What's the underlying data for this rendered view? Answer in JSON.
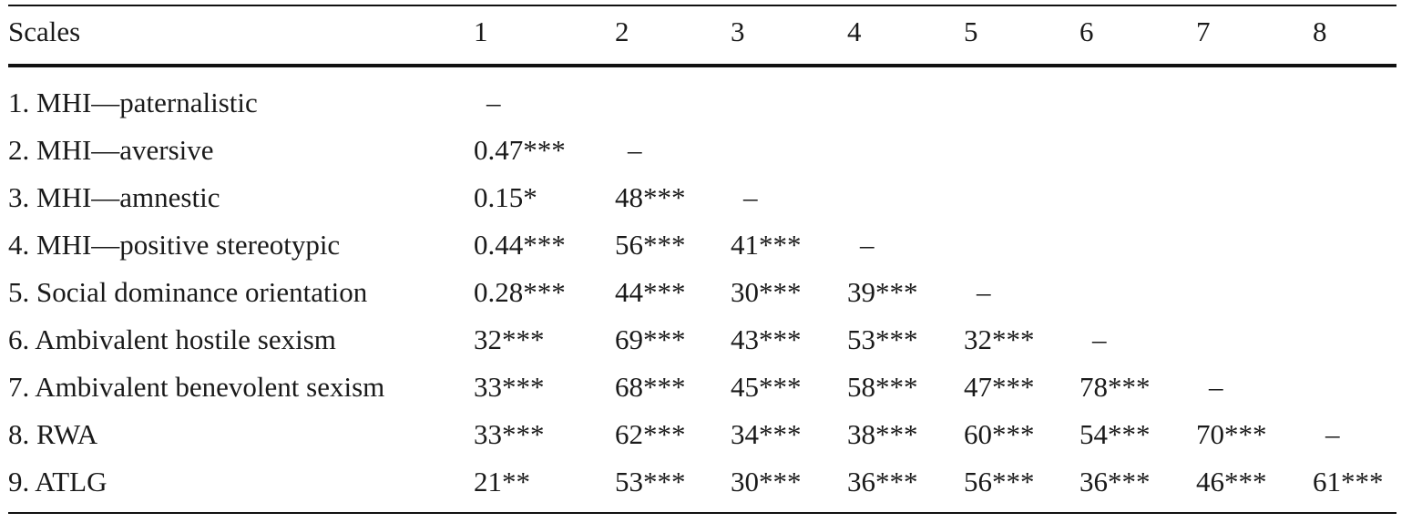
{
  "table": {
    "header": [
      "Scales",
      "1",
      "2",
      "3",
      "4",
      "5",
      "6",
      "7",
      "8"
    ],
    "rows": [
      {
        "label": "1. MHI—paternalistic",
        "values": [
          "–",
          "",
          "",
          "",
          "",
          "",
          "",
          ""
        ]
      },
      {
        "label": "2. MHI—aversive",
        "values": [
          "0.47***",
          "–",
          "",
          "",
          "",
          "",
          "",
          ""
        ]
      },
      {
        "label": "3. MHI—amnestic",
        "values": [
          "0.15*",
          "48***",
          "–",
          "",
          "",
          "",
          "",
          ""
        ]
      },
      {
        "label": "4. MHI—positive stereotypic",
        "values": [
          "0.44***",
          "56***",
          "41***",
          "–",
          "",
          "",
          "",
          ""
        ]
      },
      {
        "label": "5. Social dominance orientation",
        "values": [
          "0.28***",
          "44***",
          "30***",
          "39***",
          "–",
          "",
          "",
          ""
        ]
      },
      {
        "label": "6. Ambivalent hostile sexism",
        "values": [
          "32***",
          "69***",
          "43***",
          "53***",
          "32***",
          "–",
          "",
          ""
        ]
      },
      {
        "label": "7. Ambivalent benevolent sexism",
        "values": [
          "33***",
          "68***",
          "45***",
          "58***",
          "47***",
          "78***",
          "–",
          ""
        ]
      },
      {
        "label": "8. RWA",
        "values": [
          "33***",
          "62***",
          "34***",
          "38***",
          "60***",
          "54***",
          "70***",
          "–"
        ]
      },
      {
        "label": "9. ATLG",
        "values": [
          "21**",
          "53***",
          "30***",
          "36***",
          "56***",
          "36***",
          "46***",
          "61***"
        ]
      }
    ]
  }
}
